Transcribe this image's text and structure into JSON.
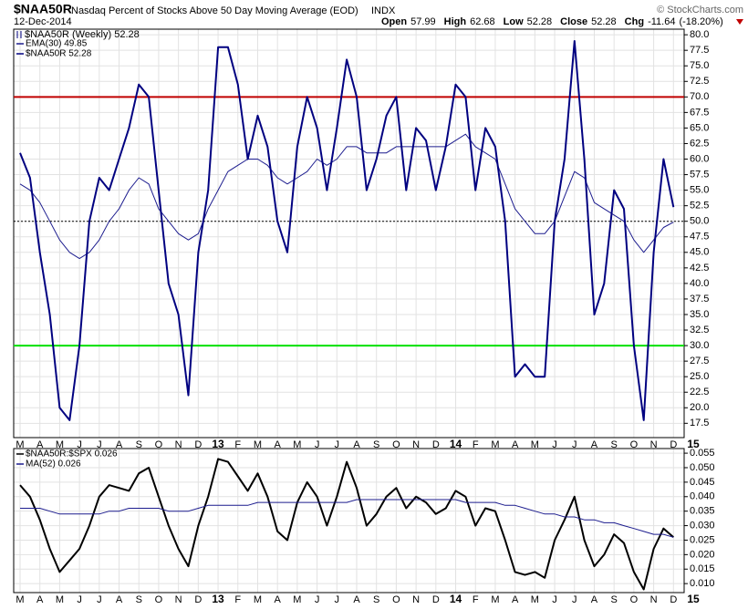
{
  "header": {
    "symbol": "$NAA50R",
    "title": "Nasdaq Percent of Stocks Above 50 Day Moving Average (EOD)",
    "exchange": "INDX",
    "date": "12-Dec-2014",
    "source": "© StockCharts.com",
    "stats": [
      {
        "label": "Open",
        "value": 57.99
      },
      {
        "label": "High",
        "value": 62.68
      },
      {
        "label": "Low",
        "value": 52.28
      },
      {
        "label": "Close",
        "value": 52.28
      },
      {
        "label": "Chg",
        "value": -11.64
      }
    ],
    "change_pct": "(-18.20%)"
  },
  "chart_data": [
    {
      "type": "line",
      "panel_label": "$NAA50R (Weekly) 52.28",
      "categories": [
        "M",
        null,
        "A",
        null,
        "M",
        null,
        "J",
        null,
        "J",
        null,
        "A",
        null,
        "S",
        null,
        "O",
        null,
        "N",
        null,
        "D",
        null,
        "13",
        null,
        "F",
        null,
        "M",
        null,
        "A",
        null,
        "M",
        null,
        "J",
        null,
        "J",
        null,
        "A",
        null,
        "S",
        null,
        "O",
        null,
        "N",
        null,
        "D",
        null,
        "14",
        null,
        "F",
        null,
        "M",
        null,
        "A",
        null,
        "M",
        null,
        "J",
        null,
        "J",
        null,
        "A",
        null,
        "S",
        null,
        "O",
        null,
        "N",
        null,
        "D",
        null,
        "15"
      ],
      "series": [
        {
          "name": "EMA(30) 49.85",
          "color": "#1c1c8e",
          "width": 1,
          "values": [
            56,
            55,
            53,
            50,
            47,
            45,
            44,
            45,
            47,
            50,
            52,
            55,
            57,
            56,
            52,
            50,
            48,
            47,
            48,
            52,
            55,
            58,
            59,
            60,
            60,
            59,
            57,
            56,
            57,
            58,
            60,
            59,
            60,
            62,
            62,
            61,
            61,
            61,
            62,
            62,
            62,
            62,
            62,
            62,
            63,
            64,
            62,
            61,
            60,
            56,
            52,
            50,
            48,
            48,
            50,
            54,
            58,
            57,
            53,
            52,
            51,
            50,
            47,
            45,
            47,
            49,
            49.85,
            null,
            null
          ]
        },
        {
          "name": "$NAA50R 52.28",
          "color": "#000080",
          "width": 2,
          "values": [
            61,
            57,
            45,
            35,
            20,
            18,
            30,
            50,
            57,
            55,
            60,
            65,
            72,
            70,
            55,
            40,
            35,
            22,
            45,
            55,
            78,
            78,
            72,
            60,
            67,
            62,
            50,
            45,
            62,
            70,
            65,
            55,
            65,
            76,
            70,
            55,
            60,
            67,
            70,
            55,
            65,
            63,
            55,
            62,
            72,
            70,
            55,
            65,
            62,
            50,
            25,
            27,
            25,
            25,
            50,
            60,
            79,
            60,
            35,
            40,
            55,
            52,
            30,
            18,
            45,
            60,
            52.28,
            null,
            null
          ]
        }
      ],
      "hlines": [
        {
          "value": 70,
          "color": "#c00000",
          "style": "solid"
        },
        {
          "value": 30,
          "color": "#00e000",
          "style": "solid"
        },
        {
          "value": 50,
          "color": "#000000",
          "style": "dotted"
        }
      ],
      "ylim": [
        15.2,
        80.9
      ],
      "yticks": [
        17.5,
        {
          "value": 20,
          "label": "20.0"
        },
        22.5,
        {
          "value": 25,
          "label": "25.0"
        },
        27.5,
        {
          "value": 30,
          "label": "30.0"
        },
        32.5,
        {
          "value": 35,
          "label": "35.0"
        },
        37.5,
        {
          "value": 40,
          "label": "40.0"
        },
        42.5,
        {
          "value": 45,
          "label": "45.0"
        },
        47.5,
        {
          "value": 50,
          "label": "50.0"
        },
        52.5,
        {
          "value": 55,
          "label": "55.0"
        },
        57.5,
        {
          "value": 60,
          "label": "60.0"
        },
        62.5,
        {
          "value": 65,
          "label": "65.0"
        },
        67.5,
        {
          "value": 70,
          "label": "70.0"
        },
        72.5,
        {
          "value": 75,
          "label": "75.0"
        },
        77.5,
        {
          "value": 80,
          "label": "80.0"
        }
      ],
      "grid": true
    },
    {
      "type": "line",
      "categories": [
        "M",
        null,
        "A",
        null,
        "M",
        null,
        "J",
        null,
        "J",
        null,
        "A",
        null,
        "S",
        null,
        "O",
        null,
        "N",
        null,
        "D",
        null,
        "13",
        null,
        "F",
        null,
        "M",
        null,
        "A",
        null,
        "M",
        null,
        "J",
        null,
        "J",
        null,
        "A",
        null,
        "S",
        null,
        "O",
        null,
        "N",
        null,
        "D",
        null,
        "14",
        null,
        "F",
        null,
        "M",
        null,
        "A",
        null,
        "M",
        null,
        "J",
        null,
        "J",
        null,
        "A",
        null,
        "S",
        null,
        "O",
        null,
        "N",
        null,
        "D",
        null,
        "15"
      ],
      "series": [
        {
          "name": "$NAA50R:$SPX 0.026",
          "color": "#000000",
          "width": 2,
          "values": [
            0.044,
            0.04,
            0.032,
            0.022,
            0.014,
            0.018,
            0.022,
            0.03,
            0.04,
            0.044,
            0.043,
            0.042,
            0.048,
            0.05,
            0.04,
            0.03,
            0.022,
            0.016,
            0.03,
            0.04,
            0.053,
            0.052,
            0.047,
            0.042,
            0.048,
            0.04,
            0.028,
            0.025,
            0.038,
            0.045,
            0.04,
            0.03,
            0.04,
            0.052,
            0.043,
            0.03,
            0.034,
            0.04,
            0.043,
            0.036,
            0.04,
            0.038,
            0.034,
            0.036,
            0.042,
            0.04,
            0.03,
            0.036,
            0.035,
            0.025,
            0.014,
            0.013,
            0.014,
            0.012,
            0.025,
            0.032,
            0.04,
            0.025,
            0.016,
            0.02,
            0.027,
            0.024,
            0.014,
            0.008,
            0.022,
            0.029,
            0.026,
            null,
            null
          ]
        },
        {
          "name": "MA(52) 0.026",
          "color": "#1c1c8e",
          "width": 1,
          "values": [
            0.036,
            0.036,
            0.036,
            0.035,
            0.034,
            0.034,
            0.034,
            0.034,
            0.034,
            0.035,
            0.035,
            0.036,
            0.036,
            0.036,
            0.036,
            0.035,
            0.035,
            0.035,
            0.036,
            0.037,
            0.037,
            0.037,
            0.037,
            0.037,
            0.038,
            0.038,
            0.038,
            0.038,
            0.038,
            0.038,
            0.038,
            0.038,
            0.038,
            0.038,
            0.039,
            0.039,
            0.039,
            0.039,
            0.039,
            0.039,
            0.039,
            0.039,
            0.039,
            0.039,
            0.039,
            0.038,
            0.038,
            0.038,
            0.038,
            0.037,
            0.037,
            0.036,
            0.035,
            0.034,
            0.034,
            0.033,
            0.033,
            0.032,
            0.032,
            0.031,
            0.031,
            0.03,
            0.029,
            0.028,
            0.027,
            0.027,
            0.026,
            null,
            null
          ]
        }
      ],
      "ylim": [
        0.0069,
        0.0566
      ],
      "yticks": [
        {
          "value": 0.01,
          "label": "0.010"
        },
        0.015,
        {
          "value": 0.02,
          "label": "0.020"
        },
        0.025,
        {
          "value": 0.03,
          "label": "0.030"
        },
        0.035,
        {
          "value": 0.04,
          "label": "0.040"
        },
        0.045,
        {
          "value": 0.05,
          "label": "0.050"
        },
        0.055
      ],
      "grid": true
    }
  ]
}
